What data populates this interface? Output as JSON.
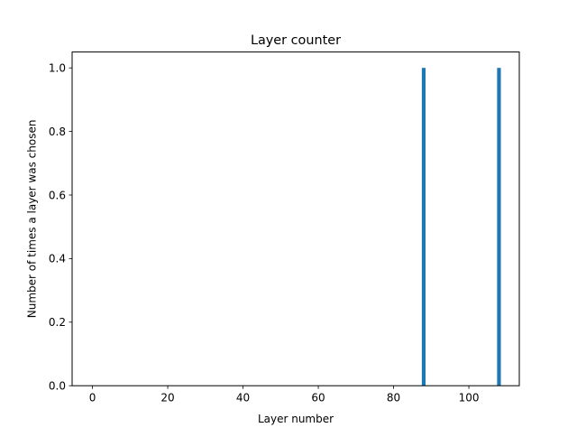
{
  "chart_data": {
    "type": "bar",
    "title": "Layer counter",
    "xlabel": "Layer number",
    "ylabel": "Number of times a layer was chosen",
    "x": [
      88,
      108
    ],
    "values": [
      1.0,
      1.0
    ],
    "bar_width": 1,
    "xlim": [
      -5.4,
      113.4
    ],
    "ylim": [
      0,
      1.05
    ],
    "xticks": [
      0,
      20,
      40,
      60,
      80,
      100
    ],
    "yticks": [
      0.0,
      0.2,
      0.4,
      0.6,
      0.8,
      1.0
    ],
    "xtick_labels": [
      "0",
      "20",
      "40",
      "60",
      "80",
      "100"
    ],
    "ytick_labels": [
      "0.0",
      "0.2",
      "0.4",
      "0.6",
      "0.8",
      "1.0"
    ],
    "grid": false,
    "bar_color": "#1f77b4"
  }
}
